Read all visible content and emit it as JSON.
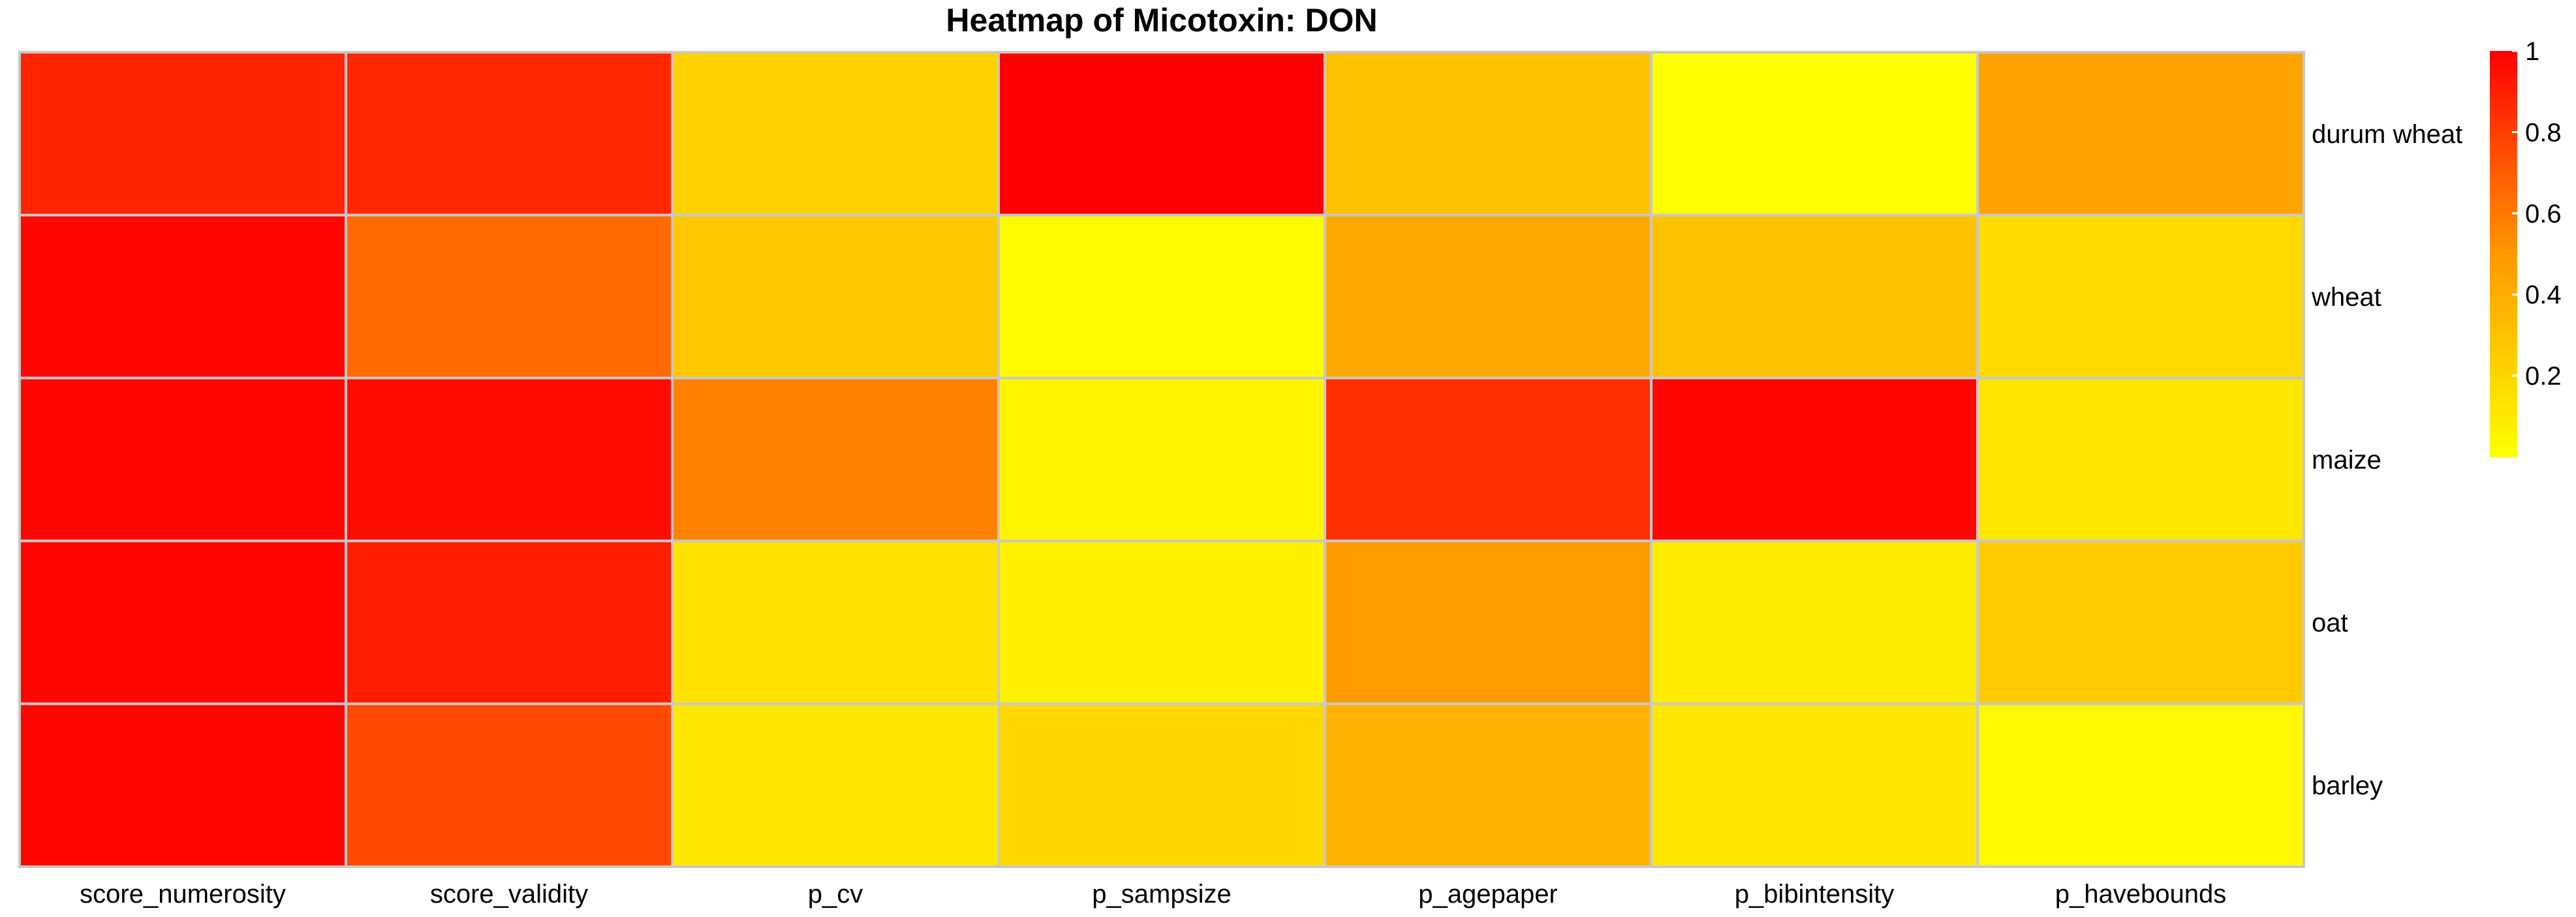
{
  "chart_data": {
    "type": "heatmap",
    "title": "Heatmap  of  Micotoxin: DON",
    "columns": [
      "score_numerosity",
      "score_validity",
      "p_cv",
      "p_sampsize",
      "p_agepaper",
      "p_bibintensity",
      "p_havebounds"
    ],
    "rows": [
      "durum wheat",
      "wheat",
      "maize",
      "oat",
      "barley"
    ],
    "values": [
      [
        0.88,
        0.87,
        0.22,
        1.0,
        0.3,
        0.0,
        0.45
      ],
      [
        0.98,
        0.65,
        0.27,
        0.02,
        0.42,
        0.3,
        0.18
      ],
      [
        0.98,
        0.96,
        0.58,
        0.05,
        0.85,
        0.98,
        0.12
      ],
      [
        0.98,
        0.9,
        0.14,
        0.07,
        0.48,
        0.09,
        0.26
      ],
      [
        0.98,
        0.76,
        0.12,
        0.19,
        0.38,
        0.12,
        0.03
      ]
    ],
    "colorscale": {
      "min": 0,
      "max": 1,
      "low_color": "#ffff00",
      "mid_color": "#ff9900",
      "high_color": "#ff0000"
    },
    "colorbar_ticks": [
      "1",
      "0.8",
      "0.6",
      "0.4",
      "0.2"
    ],
    "colorbar_tick_values": [
      1,
      0.8,
      0.6,
      0.4,
      0.2
    ],
    "grid": true,
    "legend_position": "top-right"
  }
}
